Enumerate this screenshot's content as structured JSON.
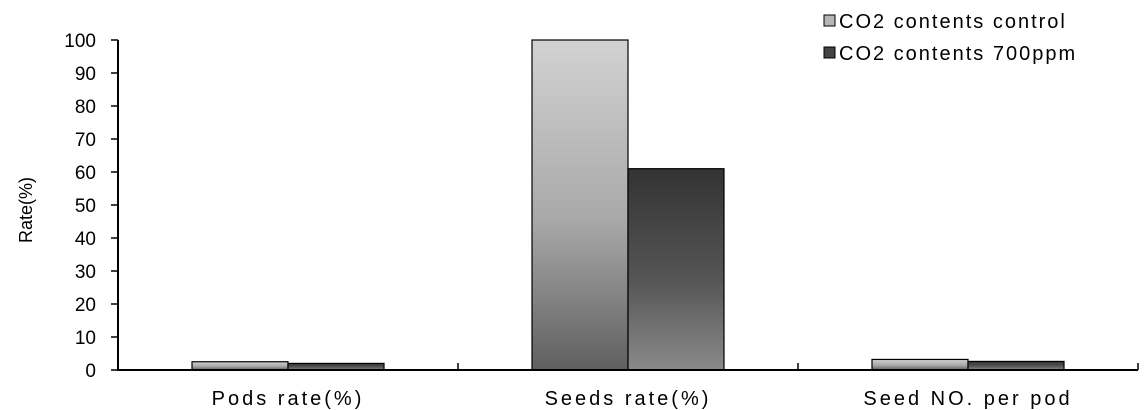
{
  "chart_data": {
    "type": "bar",
    "categories": [
      "Pods rate(%)",
      "Seeds rate(%)",
      "Seed NO. per pod"
    ],
    "series": [
      {
        "name": "CO2 contents control",
        "values": [
          2.5,
          100,
          3.2
        ],
        "color": "#b8b8b8"
      },
      {
        "name": "CO2 contents 700ppm",
        "values": [
          2.0,
          61,
          2.6
        ],
        "color": "#4a4a4a"
      }
    ],
    "title": "",
    "xlabel": "",
    "ylabel": "Rate(%)",
    "ylim": [
      0,
      100
    ],
    "yticks": [
      "0",
      "10",
      "20",
      "30",
      "40",
      "50",
      "60",
      "70",
      "80",
      "90",
      "100"
    ],
    "grid": false,
    "legend_position": "top-right"
  }
}
